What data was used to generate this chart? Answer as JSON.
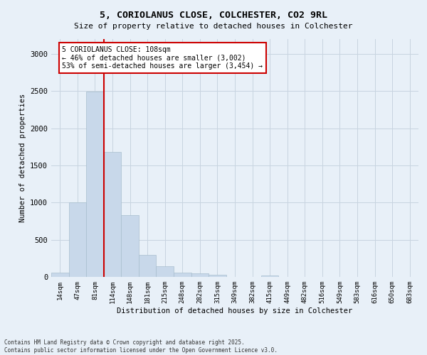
{
  "title_line1": "5, CORIOLANUS CLOSE, COLCHESTER, CO2 9RL",
  "title_line2": "Size of property relative to detached houses in Colchester",
  "xlabel": "Distribution of detached houses by size in Colchester",
  "ylabel": "Number of detached properties",
  "footnote_line1": "Contains HM Land Registry data © Crown copyright and database right 2025.",
  "footnote_line2": "Contains public sector information licensed under the Open Government Licence v3.0.",
  "bar_labels": [
    "14sqm",
    "47sqm",
    "81sqm",
    "114sqm",
    "148sqm",
    "181sqm",
    "215sqm",
    "248sqm",
    "282sqm",
    "315sqm",
    "349sqm",
    "382sqm",
    "415sqm",
    "449sqm",
    "482sqm",
    "516sqm",
    "549sqm",
    "583sqm",
    "616sqm",
    "650sqm",
    "683sqm"
  ],
  "bar_values": [
    55,
    1005,
    2490,
    1680,
    830,
    295,
    148,
    55,
    48,
    30,
    0,
    0,
    20,
    0,
    0,
    0,
    0,
    0,
    0,
    0,
    0
  ],
  "bar_color": "#c8d8ea",
  "bar_edgecolor": "#a8bece",
  "vline_x": 2.5,
  "vline_color": "#cc0000",
  "annotation_text": "5 CORIOLANUS CLOSE: 108sqm\n← 46% of detached houses are smaller (3,002)\n53% of semi-detached houses are larger (3,454) →",
  "annotation_box_edgecolor": "#cc0000",
  "annotation_box_facecolor": "#ffffff",
  "ylim": [
    0,
    3200
  ],
  "yticks": [
    0,
    500,
    1000,
    1500,
    2000,
    2500,
    3000
  ],
  "grid_color": "#c8d4e0",
  "bg_color": "#e8f0f8",
  "plot_bg_color": "#e8f0f8"
}
